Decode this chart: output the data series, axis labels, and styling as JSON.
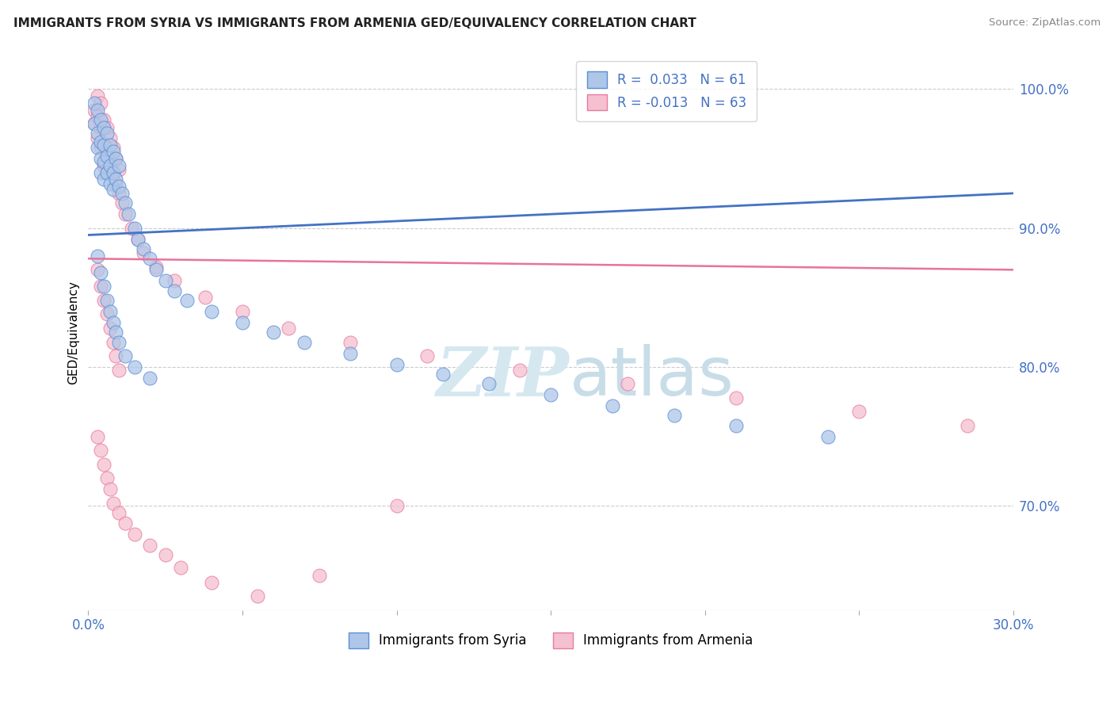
{
  "title": "IMMIGRANTS FROM SYRIA VS IMMIGRANTS FROM ARMENIA GED/EQUIVALENCY CORRELATION CHART",
  "source": "Source: ZipAtlas.com",
  "ylabel": "GED/Equivalency",
  "xlim": [
    0.0,
    0.3
  ],
  "ylim": [
    0.625,
    1.025
  ],
  "yticks": [
    0.7,
    0.8,
    0.9,
    1.0
  ],
  "ytick_labels": [
    "70.0%",
    "80.0%",
    "90.0%",
    "100.0%"
  ],
  "xticks": [
    0.0,
    0.05,
    0.1,
    0.15,
    0.2,
    0.25,
    0.3
  ],
  "xtick_labels": [
    "0.0%",
    "",
    "",
    "",
    "",
    "",
    "30.0%"
  ],
  "legend_R_syria": " 0.033",
  "legend_N_syria": "61",
  "legend_R_armenia": "-0.013",
  "legend_N_armenia": "63",
  "syria_fill_color": "#aec6e8",
  "armenia_fill_color": "#f5c0d0",
  "syria_edge_color": "#5b8ed6",
  "armenia_edge_color": "#e87aa0",
  "syria_line_color": "#4472c4",
  "armenia_line_color": "#e8739a",
  "watermark_color": "#d5e8f0",
  "background_color": "#ffffff",
  "syria_scatter_x": [
    0.002,
    0.002,
    0.003,
    0.003,
    0.003,
    0.004,
    0.004,
    0.004,
    0.004,
    0.005,
    0.005,
    0.005,
    0.005,
    0.006,
    0.006,
    0.006,
    0.007,
    0.007,
    0.007,
    0.008,
    0.008,
    0.008,
    0.009,
    0.009,
    0.01,
    0.01,
    0.011,
    0.012,
    0.013,
    0.015,
    0.016,
    0.018,
    0.02,
    0.022,
    0.025,
    0.028,
    0.032,
    0.04,
    0.05,
    0.06,
    0.07,
    0.085,
    0.1,
    0.115,
    0.13,
    0.15,
    0.17,
    0.19,
    0.21,
    0.24,
    0.003,
    0.004,
    0.005,
    0.006,
    0.007,
    0.008,
    0.009,
    0.01,
    0.012,
    0.015,
    0.02
  ],
  "syria_scatter_y": [
    0.99,
    0.975,
    0.985,
    0.968,
    0.958,
    0.978,
    0.962,
    0.95,
    0.94,
    0.972,
    0.96,
    0.948,
    0.935,
    0.968,
    0.952,
    0.94,
    0.96,
    0.945,
    0.932,
    0.955,
    0.94,
    0.928,
    0.95,
    0.935,
    0.945,
    0.93,
    0.925,
    0.918,
    0.91,
    0.9,
    0.892,
    0.885,
    0.878,
    0.87,
    0.862,
    0.855,
    0.848,
    0.84,
    0.832,
    0.825,
    0.818,
    0.81,
    0.802,
    0.795,
    0.788,
    0.78,
    0.772,
    0.765,
    0.758,
    0.75,
    0.88,
    0.868,
    0.858,
    0.848,
    0.84,
    0.832,
    0.825,
    0.818,
    0.808,
    0.8,
    0.792
  ],
  "armenia_scatter_x": [
    0.002,
    0.002,
    0.003,
    0.003,
    0.003,
    0.004,
    0.004,
    0.004,
    0.005,
    0.005,
    0.005,
    0.006,
    0.006,
    0.006,
    0.007,
    0.007,
    0.008,
    0.008,
    0.009,
    0.009,
    0.01,
    0.01,
    0.011,
    0.012,
    0.014,
    0.016,
    0.018,
    0.022,
    0.028,
    0.038,
    0.05,
    0.065,
    0.085,
    0.11,
    0.14,
    0.175,
    0.21,
    0.25,
    0.285,
    0.003,
    0.004,
    0.005,
    0.006,
    0.007,
    0.008,
    0.009,
    0.01,
    0.003,
    0.004,
    0.005,
    0.006,
    0.007,
    0.008,
    0.01,
    0.012,
    0.015,
    0.02,
    0.025,
    0.03,
    0.04,
    0.055,
    0.075,
    0.1
  ],
  "armenia_scatter_y": [
    0.985,
    0.975,
    0.995,
    0.98,
    0.965,
    0.99,
    0.972,
    0.958,
    0.978,
    0.96,
    0.945,
    0.972,
    0.955,
    0.94,
    0.965,
    0.948,
    0.958,
    0.94,
    0.95,
    0.932,
    0.942,
    0.925,
    0.918,
    0.91,
    0.9,
    0.892,
    0.882,
    0.872,
    0.862,
    0.85,
    0.84,
    0.828,
    0.818,
    0.808,
    0.798,
    0.788,
    0.778,
    0.768,
    0.758,
    0.87,
    0.858,
    0.848,
    0.838,
    0.828,
    0.818,
    0.808,
    0.798,
    0.75,
    0.74,
    0.73,
    0.72,
    0.712,
    0.702,
    0.695,
    0.688,
    0.68,
    0.672,
    0.665,
    0.656,
    0.645,
    0.635,
    0.65,
    0.7
  ]
}
